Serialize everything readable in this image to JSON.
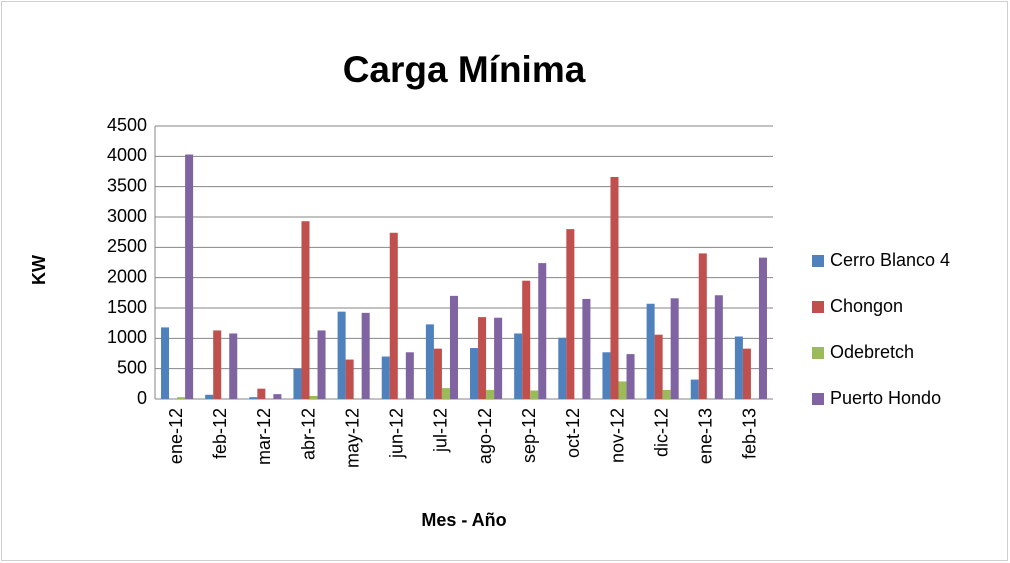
{
  "chart_data": {
    "type": "bar",
    "title": "Carga Mínima",
    "y_label": "KW",
    "x_label": "Mes - Año",
    "categories": [
      "ene-12",
      "feb-12",
      "mar-12",
      "abr-12",
      "may-12",
      "jun-12",
      "jul-12",
      "ago-12",
      "sep-12",
      "oct-12",
      "nov-12",
      "dic-12",
      "ene-13",
      "feb-13"
    ],
    "series": [
      {
        "name": "Cerro Blanco 4",
        "color": "#4F81BD",
        "values": [
          1180,
          70,
          30,
          500,
          1440,
          700,
          1230,
          840,
          1080,
          1010,
          770,
          1570,
          320,
          1030
        ]
      },
      {
        "name": "Chongon",
        "color": "#C0504D",
        "values": [
          0,
          1130,
          170,
          2930,
          650,
          2740,
          830,
          1350,
          1950,
          2800,
          3660,
          1060,
          2400,
          830
        ]
      },
      {
        "name": "Odebretch",
        "color": "#9BBB59",
        "values": [
          30,
          0,
          0,
          50,
          0,
          0,
          180,
          150,
          140,
          0,
          290,
          150,
          0,
          0
        ]
      },
      {
        "name": "Puerto Hondo",
        "color": "#8064A2",
        "values": [
          4030,
          1080,
          80,
          1130,
          1420,
          770,
          1700,
          1340,
          2240,
          1650,
          740,
          1660,
          1710,
          2330
        ]
      }
    ],
    "ylim": [
      0,
      4500
    ],
    "yticks": [
      0,
      500,
      1000,
      1500,
      2000,
      2500,
      3000,
      3500,
      4000,
      4500
    ],
    "grid": true,
    "legend": "right"
  }
}
